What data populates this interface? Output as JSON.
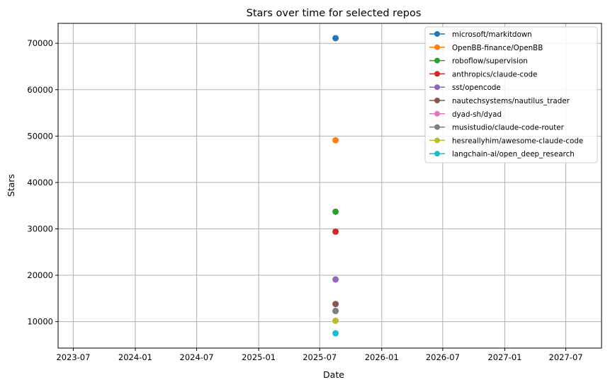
{
  "chart_data": {
    "type": "scatter",
    "title": "Stars over time for selected repos",
    "xlabel": "Date",
    "ylabel": "Stars",
    "x_ticks": [
      "2023-07",
      "2024-01",
      "2024-07",
      "2025-01",
      "2025-07",
      "2026-01",
      "2026-07",
      "2027-01",
      "2027-07"
    ],
    "y_ticks": [
      10000,
      20000,
      30000,
      40000,
      50000,
      60000,
      70000
    ],
    "xlim": [
      "2023-05-17",
      "2027-10-15"
    ],
    "ylim": [
      4300,
      74300
    ],
    "grid": true,
    "legend_position": "top-right",
    "series": [
      {
        "name": "microsoft/markitdown",
        "color": "#1f77b4",
        "points": [
          {
            "x": "2025-08-17",
            "y": 71100
          }
        ]
      },
      {
        "name": "OpenBB-finance/OpenBB",
        "color": "#ff7f0e",
        "points": [
          {
            "x": "2025-08-17",
            "y": 49100
          }
        ]
      },
      {
        "name": "roboflow/supervision",
        "color": "#2ca02c",
        "points": [
          {
            "x": "2025-08-17",
            "y": 33700
          }
        ]
      },
      {
        "name": "anthropics/claude-code",
        "color": "#d62728",
        "points": [
          {
            "x": "2025-08-17",
            "y": 29400
          }
        ]
      },
      {
        "name": "sst/opencode",
        "color": "#9467bd",
        "points": [
          {
            "x": "2025-08-17",
            "y": 19100
          }
        ]
      },
      {
        "name": "nautechsystems/nautilus_trader",
        "color": "#8c564b",
        "points": [
          {
            "x": "2025-08-17",
            "y": 13800
          }
        ]
      },
      {
        "name": "dyad-sh/dyad",
        "color": "#e377c2",
        "points": [
          {
            "x": "2025-08-17",
            "y": 12300
          }
        ]
      },
      {
        "name": "musistudio/claude-code-router",
        "color": "#7f7f7f",
        "points": [
          {
            "x": "2025-08-17",
            "y": 12300
          }
        ]
      },
      {
        "name": "hesreallyhim/awesome-claude-code",
        "color": "#bcbd22",
        "points": [
          {
            "x": "2025-08-17",
            "y": 10200
          }
        ]
      },
      {
        "name": "langchain-ai/open_deep_research",
        "color": "#17becf",
        "points": [
          {
            "x": "2025-08-17",
            "y": 7500
          }
        ]
      }
    ]
  }
}
